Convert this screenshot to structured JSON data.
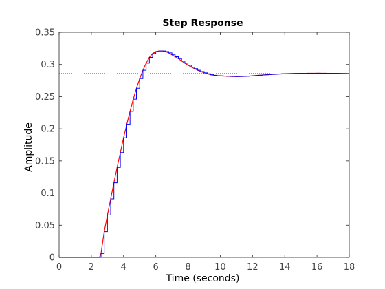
{
  "chart_data": {
    "type": "line",
    "title": "Step Response",
    "xlabel": "Time (seconds)",
    "ylabel": "Amplitude",
    "xlim": [
      0,
      18
    ],
    "ylim": [
      0,
      0.35
    ],
    "xticks": [
      "0",
      "2",
      "4",
      "6",
      "8",
      "10",
      "12",
      "14",
      "16",
      "18"
    ],
    "yticks": [
      "0",
      "0.05",
      "0.1",
      "0.15",
      "0.2",
      "0.25",
      "0.3",
      "0.35"
    ],
    "grid": false,
    "legend": "none",
    "steady_state": 0.2857,
    "step_width": 0.2,
    "colors": {
      "continuous": "#ff0000",
      "discrete": "#0000ff",
      "reference": "#000000"
    },
    "series": [
      {
        "style": "continuous",
        "x": [
          0,
          2.5,
          2.6,
          2.8,
          3.0,
          3.2,
          3.4,
          3.6,
          3.8,
          4.0,
          4.2,
          4.4,
          4.6,
          4.8,
          5.0,
          5.2,
          5.4,
          5.6,
          5.8,
          6.0,
          6.2,
          6.4,
          6.6,
          6.8,
          7.0,
          7.4,
          7.8,
          8.2,
          8.6,
          9.0,
          9.4,
          9.8,
          10.2,
          10.6,
          11.0,
          11.4,
          11.8,
          12.2,
          12.6,
          13.0,
          13.5,
          14.0,
          14.5,
          15.0,
          15.5,
          16.0,
          16.5,
          17.0,
          17.5,
          18.0
        ],
        "y": [
          0,
          0,
          0.006,
          0.04,
          0.066,
          0.091,
          0.116,
          0.14,
          0.163,
          0.186,
          0.207,
          0.227,
          0.246,
          0.263,
          0.278,
          0.291,
          0.302,
          0.311,
          0.317,
          0.32,
          0.321,
          0.321,
          0.32,
          0.318,
          0.315,
          0.309,
          0.302,
          0.296,
          0.291,
          0.287,
          0.284,
          0.2825,
          0.282,
          0.2815,
          0.2812,
          0.2815,
          0.282,
          0.2828,
          0.2836,
          0.2843,
          0.285,
          0.2856,
          0.286,
          0.2862,
          0.2863,
          0.2864,
          0.2863,
          0.2862,
          0.286,
          0.2858
        ]
      },
      {
        "style": "discrete",
        "x": [
          0,
          2.5,
          2.6,
          2.8,
          3.0,
          3.2,
          3.4,
          3.6,
          3.8,
          4.0,
          4.2,
          4.4,
          4.6,
          4.8,
          5.0,
          5.2,
          5.4,
          5.6,
          5.8,
          6.0,
          6.2,
          6.4,
          6.6,
          6.8,
          7.0,
          7.4,
          7.8,
          8.2,
          8.6,
          9.0,
          9.4,
          9.8,
          10.2,
          10.6,
          11.0,
          11.4,
          11.8,
          12.2,
          12.6,
          13.0,
          13.5,
          14.0,
          14.5,
          15.0,
          15.5,
          16.0,
          16.5,
          17.0,
          17.5,
          18.0
        ],
        "y": [
          0,
          0,
          0.006,
          0.04,
          0.066,
          0.091,
          0.116,
          0.14,
          0.163,
          0.186,
          0.207,
          0.227,
          0.246,
          0.263,
          0.278,
          0.291,
          0.302,
          0.311,
          0.317,
          0.32,
          0.321,
          0.321,
          0.32,
          0.318,
          0.315,
          0.309,
          0.302,
          0.296,
          0.291,
          0.287,
          0.284,
          0.2825,
          0.282,
          0.2815,
          0.2812,
          0.2815,
          0.282,
          0.2828,
          0.2836,
          0.2843,
          0.285,
          0.2856,
          0.286,
          0.2862,
          0.2863,
          0.2864,
          0.2863,
          0.2862,
          0.286,
          0.2858
        ]
      }
    ]
  }
}
